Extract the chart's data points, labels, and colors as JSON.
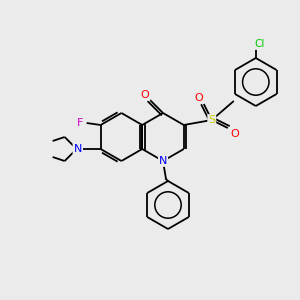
{
  "bg_color": "#ebebeb",
  "atom_colors": {
    "C": "#000000",
    "N": "#0000ff",
    "O": "#ff0000",
    "F": "#cc00cc",
    "S": "#cccc00",
    "Cl": "#00cc00"
  },
  "bond_color": "#000000",
  "figsize": [
    3.0,
    3.0
  ],
  "dpi": 100,
  "bond_lw": 1.3,
  "font_size": 7.5
}
